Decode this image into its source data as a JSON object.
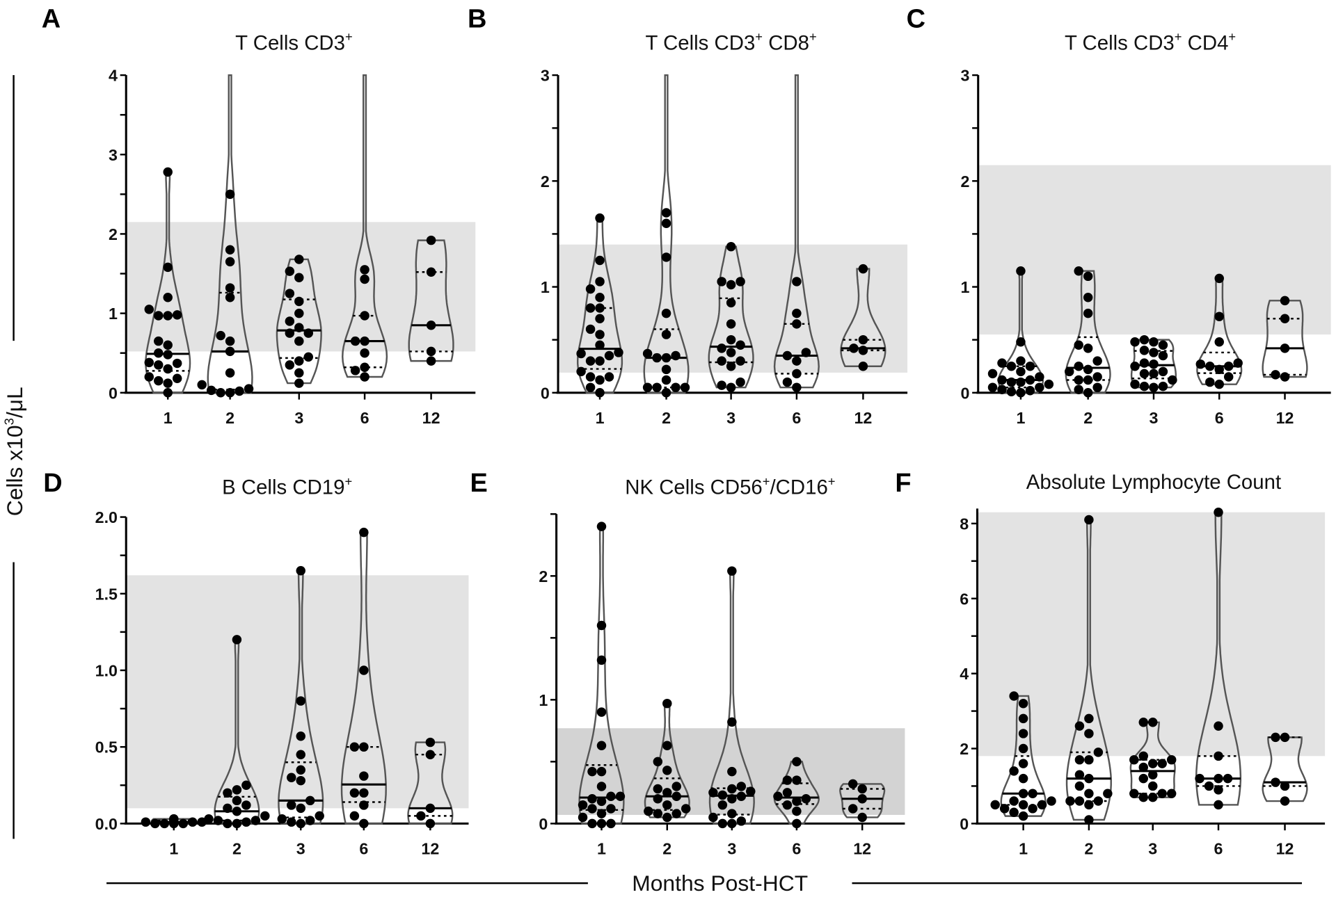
{
  "figure": {
    "y_axis_label": "Cells x10",
    "y_axis_label_sup": "3",
    "y_axis_label_unit": "/μL",
    "x_axis_label": "Months Post-HCT"
  },
  "colors": {
    "band": "#e3e3e3",
    "band_dark": "#d3d3d3",
    "violin": "#555555",
    "dot": "#000000"
  },
  "chart_data": [
    {
      "type": "violin",
      "panel": "A",
      "title": "T Cells CD3",
      "title_sup": "+",
      "categories": [
        "1",
        "2",
        "3",
        "6",
        "12"
      ],
      "ylim": [
        0,
        4
      ],
      "yticks": [
        "0",
        "1",
        "2",
        "3",
        "4"
      ],
      "ytick_values": [
        0,
        1,
        2,
        3,
        4
      ],
      "minor_step": 0.5,
      "reference_band": [
        0.52,
        2.15
      ],
      "band_style": "light",
      "groups": [
        {
          "values": [
            2.78,
            1.58,
            1.2,
            0.98,
            0.97,
            1.05,
            0.97,
            0.65,
            0.6,
            0.5,
            0.48,
            0.38,
            0.37,
            0.35,
            0.3,
            0.2,
            0.18,
            0.15,
            0.12,
            0
          ]
        },
        {
          "values": [
            2.5,
            1.8,
            1.65,
            1.32,
            1.2,
            0.72,
            0.65,
            0.52,
            0.25,
            0.1,
            0.05,
            0.03,
            0.02,
            0,
            0
          ],
          "extends_beyond_axis": true
        },
        {
          "values": [
            1.68,
            1.53,
            1.45,
            1.25,
            1.15,
            1.0,
            0.9,
            0.82,
            0.75,
            0.75,
            0.65,
            0.45,
            0.4,
            0.35,
            0.25,
            0.12
          ]
        },
        {
          "values": [
            1.55,
            1.43,
            0.97,
            0.65,
            0.65,
            0.5,
            0.32,
            0.28,
            0.2
          ],
          "extends_beyond_axis": true
        },
        {
          "values": [
            1.92,
            1.52,
            0.85,
            0.52,
            0.4
          ]
        }
      ]
    },
    {
      "type": "violin",
      "panel": "B",
      "title": "T Cells CD3",
      "title_sup": "+",
      "title2": " CD8",
      "title2_sup": "+",
      "categories": [
        "1",
        "2",
        "3",
        "6",
        "12"
      ],
      "ylim": [
        0,
        3
      ],
      "yticks": [
        "0",
        "1",
        "2",
        "3"
      ],
      "ytick_values": [
        0,
        1,
        2,
        3
      ],
      "minor_step": 0.5,
      "reference_band": [
        0.19,
        1.4
      ],
      "band_style": "light",
      "groups": [
        {
          "values": [
            1.65,
            1.25,
            1.05,
            0.98,
            0.9,
            0.8,
            0.8,
            0.7,
            0.6,
            0.55,
            0.45,
            0.38,
            0.37,
            0.35,
            0.3,
            0.3,
            0.2,
            0.15,
            0.15,
            0.12,
            0.05,
            0
          ]
        },
        {
          "values": [
            1.7,
            1.6,
            1.28,
            0.75,
            0.55,
            0.35,
            0.37,
            0.33,
            0.33,
            0.22,
            0.12,
            0.05,
            0.05,
            0.05,
            0.05,
            0
          ],
          "extends_beyond_axis": true
        },
        {
          "values": [
            1.38,
            1.05,
            1.02,
            1.05,
            0.85,
            0.65,
            0.5,
            0.45,
            0.42,
            0.38,
            0.3,
            0.25,
            0.3,
            0.1,
            0.07,
            0.05
          ]
        },
        {
          "values": [
            1.05,
            0.75,
            0.65,
            0.38,
            0.35,
            0.3,
            0.18,
            0.1,
            0.05
          ],
          "extends_beyond_axis": true
        },
        {
          "values": [
            1.17,
            0.5,
            0.42,
            0.4,
            0.25
          ]
        }
      ]
    },
    {
      "type": "violin",
      "panel": "C",
      "title": "T Cells CD3",
      "title_sup": "+",
      "title2": " CD4",
      "title2_sup": "+",
      "categories": [
        "1",
        "2",
        "3",
        "6",
        "12"
      ],
      "ylim": [
        0,
        3
      ],
      "yticks": [
        "0",
        "1",
        "2",
        "3"
      ],
      "ytick_values": [
        0,
        1,
        2,
        3
      ],
      "minor_step": 0.5,
      "reference_band": [
        0.55,
        2.15
      ],
      "band_style": "light",
      "groups": [
        {
          "values": [
            1.15,
            0.48,
            0.3,
            0.28,
            0.25,
            0.25,
            0.2,
            0.18,
            0.15,
            0.12,
            0.12,
            0.1,
            0.1,
            0.08,
            0.05,
            0.05,
            0.03,
            0.02,
            0.01,
            0
          ]
        },
        {
          "values": [
            1.15,
            1.1,
            0.9,
            0.75,
            0.45,
            0.42,
            0.3,
            0.25,
            0.22,
            0.2,
            0.15,
            0.12,
            0.12,
            0.05,
            0.03,
            0
          ]
        },
        {
          "values": [
            0.48,
            0.5,
            0.48,
            0.45,
            0.38,
            0.4,
            0.35,
            0.28,
            0.25,
            0.27,
            0.2,
            0.18,
            0.18,
            0.12,
            0.06,
            0.08,
            0.06,
            0.05
          ]
        },
        {
          "values": [
            1.08,
            0.72,
            0.48,
            0.28,
            0.27,
            0.25,
            0.25,
            0.22,
            0.15,
            0.1,
            0.08
          ]
        },
        {
          "values": [
            0.87,
            0.7,
            0.42,
            0.15,
            0.17
          ]
        }
      ]
    },
    {
      "type": "violin",
      "panel": "D",
      "title": "B  Cells CD19",
      "title_sup": "+",
      "categories": [
        "1",
        "2",
        "3",
        "6",
        "12"
      ],
      "ylim": [
        0,
        2
      ],
      "yticks": [
        "0.0",
        "0.5",
        "1.0",
        "1.5",
        "2.0"
      ],
      "ytick_values": [
        0,
        0.5,
        1,
        1.5,
        2
      ],
      "minor_step": 0.25,
      "reference_band": [
        0.1,
        1.62
      ],
      "band_style": "light",
      "groups": [
        {
          "values": [
            0.03,
            0.02,
            0.02,
            0.01,
            0.01,
            0.01,
            0,
            0,
            0,
            0,
            0.02,
            0.03
          ]
        },
        {
          "values": [
            1.2,
            0.25,
            0.22,
            0.2,
            0.15,
            0.12,
            0.1,
            0.08,
            0.05,
            0.03,
            0.02,
            0.02,
            0.01,
            0,
            0
          ]
        },
        {
          "values": [
            1.65,
            0.8,
            0.57,
            0.45,
            0.35,
            0.3,
            0.28,
            0.15,
            0.12,
            0.1,
            0.05,
            0.03,
            0.02,
            0.01,
            0
          ]
        },
        {
          "values": [
            1.9,
            1.0,
            0.5,
            0.5,
            0.31,
            0.2,
            0.2,
            0.12,
            0.05,
            0
          ]
        },
        {
          "values": [
            0.53,
            0.45,
            0.1,
            0.05,
            0
          ]
        }
      ]
    },
    {
      "type": "violin",
      "panel": "E",
      "title": "NK Cells CD56",
      "title_sup": "+",
      "title2": "/CD16",
      "title2_sup": "+",
      "categories": [
        "1",
        "2",
        "3",
        "6",
        "12"
      ],
      "ylim": [
        0,
        2.5
      ],
      "yticks": [
        "0",
        "1",
        "2"
      ],
      "ytick_values": [
        0,
        1,
        2
      ],
      "minor_step": 0.5,
      "reference_band": [
        0.07,
        0.77
      ],
      "band_style": "dark",
      "groups": [
        {
          "values": [
            2.4,
            1.6,
            1.32,
            0.9,
            0.63,
            0.42,
            0.42,
            0.3,
            0.22,
            0.22,
            0.2,
            0.18,
            0.15,
            0.12,
            0.12,
            0.08,
            0.05,
            0,
            0,
            0
          ]
        },
        {
          "values": [
            0.97,
            0.63,
            0.5,
            0.43,
            0.3,
            0.28,
            0.25,
            0.22,
            0.2,
            0.15,
            0.12,
            0.1,
            0.08,
            0.08,
            0.05
          ]
        },
        {
          "values": [
            2.04,
            0.82,
            0.42,
            0.3,
            0.28,
            0.26,
            0.25,
            0.23,
            0.22,
            0.2,
            0.15,
            0.08,
            0.05,
            0.02,
            0,
            0
          ]
        },
        {
          "values": [
            0.5,
            0.35,
            0.35,
            0.25,
            0.22,
            0.2,
            0.18,
            0.15,
            0.1,
            0
          ]
        },
        {
          "values": [
            0.32,
            0.28,
            0.2,
            0.12,
            0.05
          ]
        }
      ]
    },
    {
      "type": "violin",
      "panel": "F",
      "title": "Absolute Lymphocyte Count",
      "categories": [
        "1",
        "2",
        "3",
        "6",
        "12"
      ],
      "ylim": [
        0,
        8.4
      ],
      "yticks": [
        "0",
        "2",
        "4",
        "6",
        "8"
      ],
      "ytick_values": [
        0,
        2,
        4,
        6,
        8
      ],
      "minor_step": 1,
      "reference_band": [
        1.8,
        8.3
      ],
      "band_style": "light",
      "groups": [
        {
          "values": [
            3.4,
            3.2,
            2.8,
            2.4,
            2.0,
            1.6,
            1.4,
            1.2,
            0.8,
            0.8,
            0.6,
            0.6,
            0.5,
            0.5,
            0.5,
            0.4,
            0.4,
            0.3,
            0.2
          ]
        },
        {
          "values": [
            8.1,
            2.8,
            2.6,
            2.4,
            1.9,
            1.7,
            1.7,
            1.3,
            1.2,
            1.0,
            0.8,
            0.8,
            0.6,
            0.6,
            0.6,
            0.5,
            0.1
          ]
        },
        {
          "values": [
            2.7,
            2.7,
            1.8,
            1.7,
            1.7,
            1.6,
            1.6,
            1.5,
            1.3,
            1.2,
            1.0,
            0.8,
            0.8,
            0.8,
            0.7,
            0.7
          ]
        },
        {
          "values": [
            8.3,
            2.6,
            1.8,
            1.2,
            1.2,
            1.2,
            1.0,
            0.9,
            0.5
          ]
        },
        {
          "values": [
            2.3,
            2.3,
            1.1,
            1.0,
            0.6
          ]
        }
      ]
    }
  ]
}
